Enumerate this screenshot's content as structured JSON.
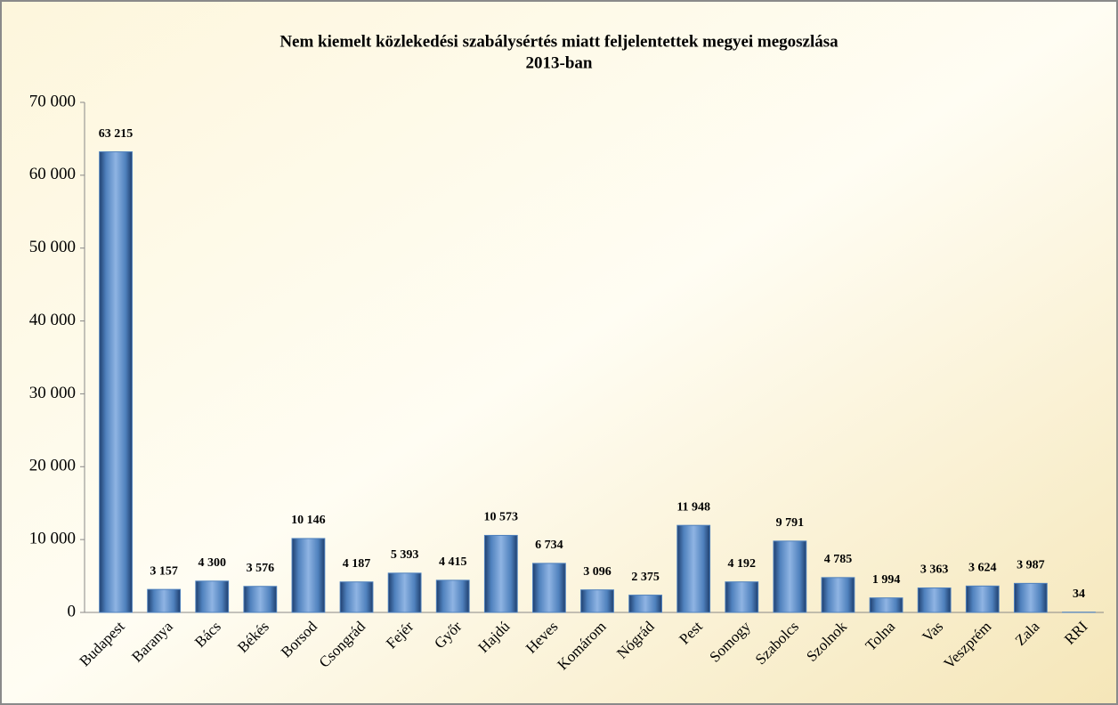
{
  "chart_data": {
    "type": "bar",
    "title": [
      "Nem kiemelt közlekedési szabálysértés miatt feljelentettek megyei megoszlása",
      "2013-ban"
    ],
    "categories": [
      "Budapest",
      "Baranya",
      "Bács",
      "Békés",
      "Borsod",
      "Csongrád",
      "Fejér",
      "Győr",
      "Hajdú",
      "Heves",
      "Komárom",
      "Nógrád",
      "Pest",
      "Somogy",
      "Szabolcs",
      "Szolnok",
      "Tolna",
      "Vas",
      "Veszprém",
      "Zala",
      "RRI"
    ],
    "values": [
      63215,
      3157,
      4300,
      3576,
      10146,
      4187,
      5393,
      4415,
      10573,
      6734,
      3096,
      2375,
      11948,
      4192,
      9791,
      4785,
      1994,
      3363,
      3624,
      3987,
      34
    ],
    "value_labels": [
      "63 215",
      "3 157",
      "4 300",
      "3 576",
      "10 146",
      "4 187",
      "5 393",
      "4 415",
      "10 573",
      "6 734",
      "3 096",
      "2 375",
      "11 948",
      "4 192",
      "9 791",
      "4 785",
      "1 994",
      "3 363",
      "3 624",
      "3 987",
      "34"
    ],
    "color": "#4f81bd",
    "ylim": [
      0,
      70000
    ],
    "yticks": [
      0,
      {
        "value": 10000,
        "label": "10 000"
      },
      {
        "value": 20000,
        "label": "20 000"
      },
      {
        "value": 30000,
        "label": "30 000"
      },
      {
        "value": 40000,
        "label": "40 000"
      },
      {
        "value": 50000,
        "label": "50 000"
      },
      {
        "value": 60000,
        "label": "60 000"
      },
      {
        "value": 70000,
        "label": "70 000"
      }
    ],
    "grid": false
  }
}
